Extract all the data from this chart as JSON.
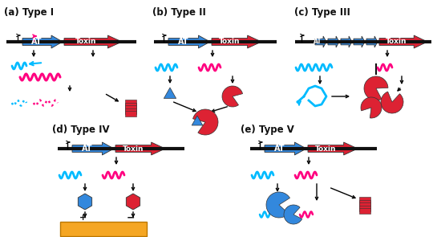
{
  "bg_color": "#ffffff",
  "cyan": "#00BBFF",
  "magenta": "#FF0080",
  "red": "#DD2233",
  "blue": "#3388DD",
  "black": "#111111",
  "orange": "#F5A623",
  "labels": [
    "(a) Type I",
    "(b) Type II",
    "(c) Type III",
    "(d) Type IV",
    "(e) Type V"
  ],
  "AT_color": "#3388DD",
  "Toxin_color": "#DD2233",
  "lfs": 8.5,
  "tfs": 7.0
}
